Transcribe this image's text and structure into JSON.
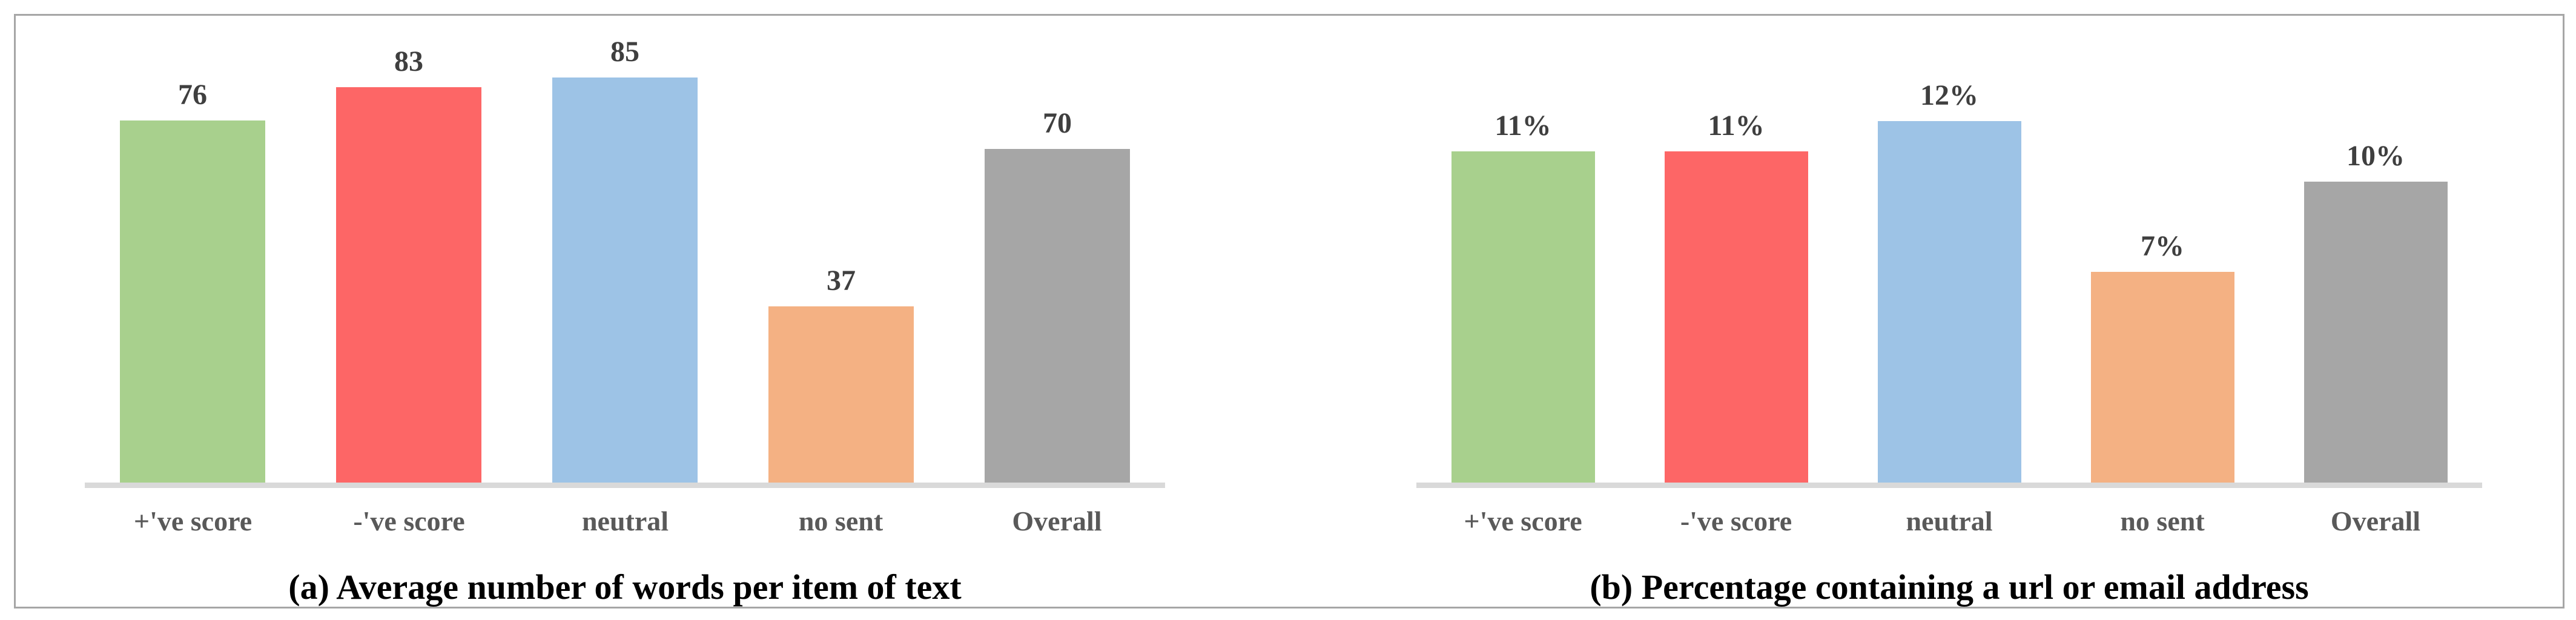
{
  "figure": {
    "border_color": "#a6a6a6",
    "background_color": "#ffffff"
  },
  "colors": {
    "axis_line": "#d9d9d9",
    "value_label_text": "#3f3f3f",
    "axis_label_text": "#595959",
    "caption_text": "#000000",
    "green_bar": "#a8d08d",
    "red_bar": "#fd6666",
    "blue_bar": "#9dc3e6",
    "orange_bar": "#f4b183",
    "gray_bar": "#a6a6a6"
  },
  "chart_data": [
    {
      "type": "bar",
      "title": "(a) Average number of words per item of text",
      "categories": [
        "+'ve score",
        "-'ve score",
        "neutral",
        "no sent",
        "Overall"
      ],
      "values": [
        76,
        83,
        85,
        37,
        70
      ],
      "value_labels": [
        "76",
        "83",
        "85",
        "37",
        "70"
      ],
      "bar_colors": [
        "#a8d08d",
        "#fd6666",
        "#9dc3e6",
        "#f4b183",
        "#a6a6a6"
      ],
      "xlabel": "",
      "ylabel": "",
      "ylim": [
        0,
        98
      ],
      "grid": false,
      "legend": "none",
      "y_axis_ticks": "none",
      "data_labels_position": "above-bar"
    },
    {
      "type": "bar",
      "title": "(b) Percentage containing a url or email address",
      "categories": [
        "+'ve score",
        "-'ve score",
        "neutral",
        "no sent",
        "Overall"
      ],
      "values": [
        11,
        11,
        12,
        7,
        10
      ],
      "value_labels": [
        "11%",
        "11%",
        "12%",
        "7%",
        "10%"
      ],
      "bar_colors": [
        "#a8d08d",
        "#fd6666",
        "#9dc3e6",
        "#f4b183",
        "#a6a6a6"
      ],
      "xlabel": "",
      "ylabel": "",
      "ylim": [
        0,
        15.5
      ],
      "grid": false,
      "legend": "none",
      "y_axis_ticks": "none",
      "data_labels_position": "above-bar"
    }
  ]
}
